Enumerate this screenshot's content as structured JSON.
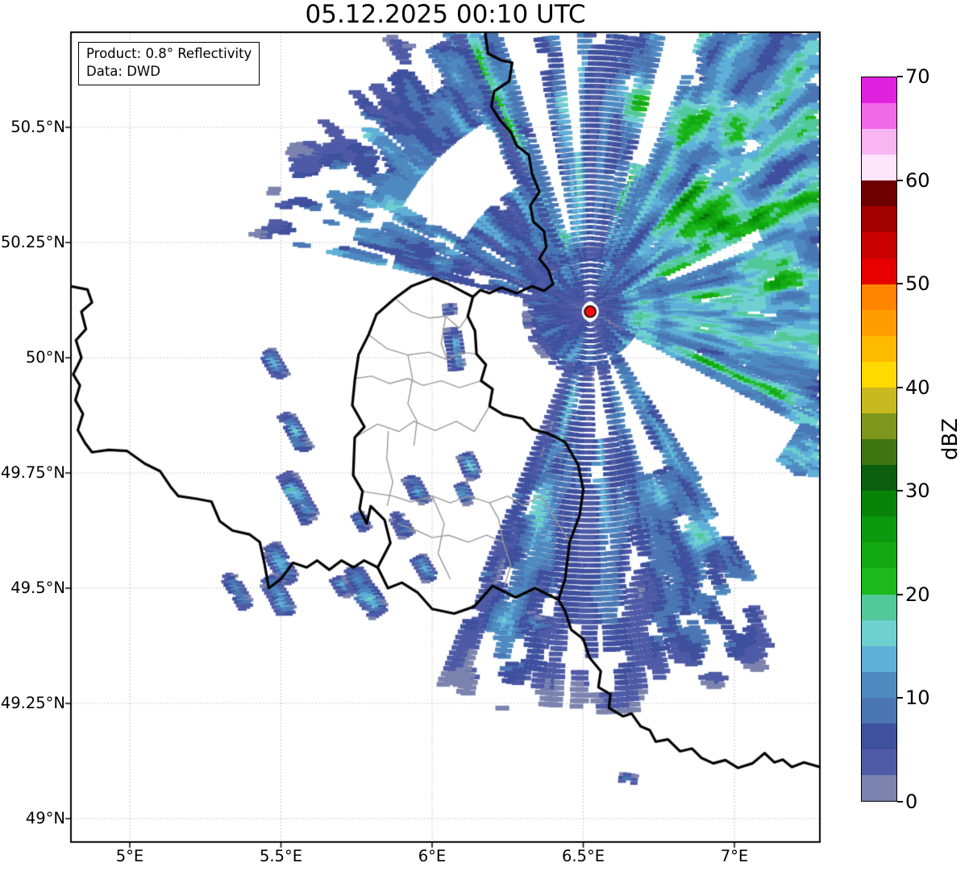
{
  "title": "05.12.2025 00:10 UTC",
  "annotation": {
    "line1": "Product: 0.8° Reflectivity",
    "line2": "Data: DWD"
  },
  "axes": {
    "x_ticks": [
      {
        "lon": 5.0,
        "label": "5°E"
      },
      {
        "lon": 5.5,
        "label": "5.5°E"
      },
      {
        "lon": 6.0,
        "label": "6°E"
      },
      {
        "lon": 6.5,
        "label": "6.5°E"
      },
      {
        "lon": 7.0,
        "label": "7°E"
      }
    ],
    "y_ticks": [
      {
        "lat": 50.5,
        "label": "50.5°N"
      },
      {
        "lat": 50.25,
        "label": "50.25°N"
      },
      {
        "lat": 50.0,
        "label": "50°N"
      },
      {
        "lat": 49.75,
        "label": "49.75°N"
      },
      {
        "lat": 49.5,
        "label": "49.5°N"
      },
      {
        "lat": 49.25,
        "label": "49.25°N"
      },
      {
        "lat": 49.0,
        "label": "49°N"
      }
    ]
  },
  "colorbar": {
    "label": "dBZ",
    "min": 0,
    "max": 70,
    "step": 2.5,
    "tick_values": [
      0,
      10,
      20,
      30,
      40,
      50,
      60,
      70
    ],
    "colors": [
      "#7b83ae",
      "#4f5ba6",
      "#3f509e",
      "#4a76b4",
      "#4e8ac0",
      "#5fb0d8",
      "#6fd0d0",
      "#52c998",
      "#1cb81c",
      "#12a912",
      "#0b9a0e",
      "#078408",
      "#0b5e0e",
      "#3f7510",
      "#7e961b",
      "#c9b920",
      "#ffd900",
      "#ffbb00",
      "#ff9d00",
      "#ff8400",
      "#e60000",
      "#c90000",
      "#a30000",
      "#700000",
      "#fde5fb",
      "#f9b5f2",
      "#f06ae8",
      "#e021e0"
    ]
  },
  "map": {
    "extent": {
      "lon_min": 4.805,
      "lon_max": 7.283,
      "lat_min": 48.949,
      "lat_max": 50.706
    },
    "grid_color": "#bbbbbb",
    "radar_site": {
      "lon": 6.523,
      "lat": 50.1,
      "marker_color": "#f10e10",
      "marker_edge": "#000000"
    },
    "borders_national": [
      [
        [
          6.175,
          50.709
        ],
        [
          6.185,
          50.66
        ],
        [
          6.23,
          50.645
        ],
        [
          6.265,
          50.64
        ],
        [
          6.255,
          50.6
        ],
        [
          6.205,
          50.578
        ],
        [
          6.196,
          50.545
        ],
        [
          6.225,
          50.515
        ],
        [
          6.26,
          50.49
        ],
        [
          6.28,
          50.46
        ],
        [
          6.32,
          50.44
        ],
        [
          6.33,
          50.4
        ],
        [
          6.355,
          50.36
        ],
        [
          6.325,
          50.33
        ],
        [
          6.335,
          50.295
        ],
        [
          6.37,
          50.275
        ],
        [
          6.378,
          50.24
        ],
        [
          6.355,
          50.215
        ],
        [
          6.385,
          50.19
        ],
        [
          6.4,
          50.16
        ],
        [
          6.37,
          50.145
        ],
        [
          6.33,
          50.155
        ],
        [
          6.28,
          50.14
        ],
        [
          6.23,
          50.152
        ],
        [
          6.19,
          50.14
        ],
        [
          6.16,
          50.147
        ],
        [
          6.135,
          50.132
        ]
      ],
      [
        [
          6.135,
          50.132
        ],
        [
          6.118,
          50.09
        ],
        [
          6.142,
          50.058
        ],
        [
          6.147,
          50.008
        ],
        [
          6.178,
          49.985
        ],
        [
          6.162,
          49.95
        ],
        [
          6.2,
          49.932
        ],
        [
          6.19,
          49.895
        ],
        [
          6.235,
          49.877
        ],
        [
          6.3,
          49.868
        ],
        [
          6.332,
          49.845
        ],
        [
          6.382,
          49.836
        ],
        [
          6.44,
          49.817
        ],
        [
          6.483,
          49.768
        ],
        [
          6.5,
          49.714
        ],
        [
          6.488,
          49.658
        ],
        [
          6.455,
          49.6
        ],
        [
          6.44,
          49.52
        ],
        [
          6.418,
          49.475
        ],
        [
          6.34,
          49.5
        ],
        [
          6.276,
          49.48
        ],
        [
          6.2,
          49.505
        ],
        [
          6.139,
          49.46
        ],
        [
          6.073,
          49.445
        ],
        [
          6.0,
          49.455
        ],
        [
          5.953,
          49.49
        ],
        [
          5.9,
          49.512
        ],
        [
          5.854,
          49.5
        ],
        [
          5.82,
          49.545
        ],
        [
          5.862,
          49.598
        ],
        [
          5.843,
          49.648
        ],
        [
          5.797,
          49.678
        ],
        [
          5.784,
          49.64
        ],
        [
          5.76,
          49.672
        ],
        [
          5.77,
          49.71
        ],
        [
          5.739,
          49.745
        ],
        [
          5.744,
          49.827
        ],
        [
          5.776,
          49.85
        ],
        [
          5.736,
          49.897
        ],
        [
          5.745,
          49.955
        ],
        [
          5.757,
          50.007
        ],
        [
          5.79,
          50.05
        ],
        [
          5.816,
          50.094
        ],
        [
          5.877,
          50.129
        ],
        [
          5.931,
          50.155
        ],
        [
          6.003,
          50.173
        ],
        [
          6.051,
          50.161
        ],
        [
          6.091,
          50.147
        ],
        [
          6.135,
          50.132
        ]
      ],
      [
        [
          4.806,
          50.155
        ],
        [
          4.86,
          50.148
        ],
        [
          4.875,
          50.12
        ],
        [
          4.84,
          50.1
        ],
        [
          4.855,
          50.062
        ],
        [
          4.822,
          50.038
        ],
        [
          4.84,
          50.0
        ],
        [
          4.813,
          49.964
        ],
        [
          4.835,
          49.94
        ],
        [
          4.82,
          49.908
        ],
        [
          4.845,
          49.878
        ],
        [
          4.828,
          49.843
        ],
        [
          4.852,
          49.815
        ],
        [
          4.875,
          49.795
        ],
        [
          4.93,
          49.8
        ],
        [
          4.99,
          49.798
        ],
        [
          5.05,
          49.77
        ],
        [
          5.1,
          49.754
        ],
        [
          5.135,
          49.72
        ],
        [
          5.16,
          49.7
        ],
        [
          5.22,
          49.694
        ],
        [
          5.27,
          49.688
        ],
        [
          5.298,
          49.645
        ],
        [
          5.34,
          49.625
        ],
        [
          5.395,
          49.617
        ],
        [
          5.43,
          49.6
        ],
        [
          5.445,
          49.555
        ],
        [
          5.46,
          49.5
        ],
        [
          5.5,
          49.52
        ],
        [
          5.54,
          49.555
        ],
        [
          5.585,
          49.545
        ],
        [
          5.62,
          49.56
        ],
        [
          5.66,
          49.54
        ],
        [
          5.7,
          49.56
        ],
        [
          5.74,
          49.545
        ],
        [
          5.775,
          49.56
        ],
        [
          5.82,
          49.545
        ]
      ],
      [
        [
          6.418,
          49.475
        ],
        [
          6.44,
          49.45
        ],
        [
          6.46,
          49.41
        ],
        [
          6.5,
          49.39
        ],
        [
          6.52,
          49.35
        ],
        [
          6.558,
          49.32
        ],
        [
          6.55,
          49.285
        ],
        [
          6.59,
          49.27
        ],
        [
          6.585,
          49.24
        ],
        [
          6.632,
          49.222
        ],
        [
          6.66,
          49.228
        ],
        [
          6.69,
          49.2
        ],
        [
          6.72,
          49.192
        ],
        [
          6.74,
          49.167
        ],
        [
          6.78,
          49.172
        ],
        [
          6.82,
          49.146
        ],
        [
          6.86,
          49.152
        ],
        [
          6.89,
          49.132
        ],
        [
          6.93,
          49.12
        ],
        [
          6.97,
          49.127
        ],
        [
          7.012,
          49.11
        ],
        [
          7.06,
          49.12
        ],
        [
          7.1,
          49.142
        ],
        [
          7.132,
          49.122
        ],
        [
          7.16,
          49.128
        ],
        [
          7.19,
          49.112
        ],
        [
          7.23,
          49.122
        ],
        [
          7.283,
          49.112
        ]
      ]
    ],
    "borders_districts": [
      [
        [
          5.877,
          50.129
        ],
        [
          5.93,
          50.1
        ],
        [
          5.99,
          50.086
        ],
        [
          6.045,
          50.09
        ],
        [
          6.09,
          50.064
        ],
        [
          6.118,
          50.09
        ]
      ],
      [
        [
          5.79,
          50.05
        ],
        [
          5.85,
          50.02
        ],
        [
          5.92,
          50.006
        ],
        [
          5.99,
          50.012
        ],
        [
          6.05,
          49.996
        ],
        [
          6.1,
          50.012
        ],
        [
          6.147,
          50.008
        ]
      ],
      [
        [
          5.745,
          49.955
        ],
        [
          5.8,
          49.96
        ],
        [
          5.86,
          49.944
        ],
        [
          5.92,
          49.955
        ],
        [
          5.97,
          49.94
        ],
        [
          6.03,
          49.95
        ],
        [
          6.09,
          49.935
        ],
        [
          6.162,
          49.95
        ]
      ],
      [
        [
          5.92,
          50.006
        ],
        [
          5.935,
          49.955
        ],
        [
          5.92,
          49.9
        ],
        [
          5.95,
          49.862
        ],
        [
          5.94,
          49.81
        ]
      ],
      [
        [
          5.744,
          49.827
        ],
        [
          5.82,
          49.856
        ],
        [
          5.89,
          49.84
        ],
        [
          5.94,
          49.862
        ]
      ],
      [
        [
          5.94,
          49.862
        ],
        [
          6.01,
          49.842
        ],
        [
          6.08,
          49.862
        ],
        [
          6.14,
          49.84
        ],
        [
          6.19,
          49.895
        ]
      ],
      [
        [
          5.855,
          49.84
        ],
        [
          5.85,
          49.78
        ],
        [
          5.87,
          49.73
        ],
        [
          5.852,
          49.68
        ]
      ],
      [
        [
          5.77,
          49.71
        ],
        [
          5.87,
          49.7
        ],
        [
          5.93,
          49.687
        ],
        [
          6.0,
          49.7
        ],
        [
          6.06,
          49.685
        ],
        [
          6.12,
          49.7
        ],
        [
          6.19,
          49.685
        ],
        [
          6.25,
          49.7
        ],
        [
          6.3,
          49.68
        ],
        [
          6.36,
          49.7
        ],
        [
          6.455,
          49.6
        ]
      ],
      [
        [
          6.0,
          49.7
        ],
        [
          6.04,
          49.64
        ],
        [
          6.02,
          49.575
        ],
        [
          6.06,
          49.52
        ]
      ],
      [
        [
          5.885,
          49.64
        ],
        [
          5.95,
          49.625
        ],
        [
          6.0,
          49.61
        ],
        [
          6.055,
          49.615
        ],
        [
          6.12,
          49.6
        ],
        [
          6.18,
          49.615
        ],
        [
          6.235,
          49.6
        ]
      ],
      [
        [
          6.235,
          49.6
        ],
        [
          6.26,
          49.55
        ],
        [
          6.24,
          49.505
        ]
      ],
      [
        [
          6.19,
          49.685
        ],
        [
          6.22,
          49.65
        ],
        [
          6.235,
          49.6
        ]
      ],
      [
        [
          6.045,
          50.09
        ],
        [
          6.03,
          50.03
        ],
        [
          6.05,
          49.996
        ]
      ]
    ]
  },
  "radar_field": {
    "seed": 7,
    "az_step": 0.75,
    "r_step": 7,
    "sectors": [
      {
        "az0": 0,
        "az1": 360,
        "r0": 16,
        "r1": 85,
        "base": 7,
        "varr": 4,
        "drop": 0.15
      },
      {
        "az0": 333,
        "az1": 390,
        "r0": 70,
        "r1": 640,
        "base": 10.5,
        "varr": 6,
        "drop": 0.22
      },
      {
        "az0": 30,
        "az1": 118,
        "r0": 70,
        "r1": 760,
        "base": 12.5,
        "varr": 6,
        "drop": 0.14
      },
      {
        "az0": 118,
        "az1": 152,
        "r0": 70,
        "r1": 460,
        "base": 8,
        "varr": 5,
        "drop": 0.3
      },
      {
        "az0": 152,
        "az1": 202,
        "r0": 70,
        "r1": 520,
        "base": 7.5,
        "varr": 4.5,
        "drop": 0.25
      },
      {
        "az0": 283,
        "az1": 335,
        "r0": 70,
        "r1": 440,
        "base": 7.5,
        "varr": 5,
        "drop": 0.27
      }
    ],
    "white_wedges": [
      [
        342,
        349,
        100,
        460
      ],
      [
        353,
        358,
        200,
        430
      ],
      [
        299,
        331,
        180,
        272
      ],
      [
        118,
        147,
        60,
        300
      ],
      [
        128,
        148,
        250,
        450
      ],
      [
        154,
        163,
        55,
        215
      ],
      [
        170,
        179,
        70,
        160
      ],
      [
        15,
        22,
        190,
        410
      ],
      [
        64,
        69,
        100,
        220
      ]
    ],
    "green_zones": [
      [
        6.704,
        50.566,
        46,
        36,
        9
      ],
      [
        6.917,
        50.514,
        70,
        42,
        8
      ],
      [
        6.917,
        50.295,
        82,
        46,
        11
      ],
      [
        7.104,
        50.191,
        56,
        36,
        8
      ],
      [
        6.691,
        50.086,
        28,
        58,
        8
      ],
      [
        6.645,
        49.937,
        22,
        66,
        7
      ],
      [
        6.445,
        50.269,
        22,
        46,
        7
      ],
      [
        6.736,
        49.706,
        28,
        25,
        6
      ],
      [
        5.869,
        50.343,
        38,
        42,
        6
      ],
      [
        6.045,
        50.229,
        20,
        30,
        5
      ],
      [
        6.877,
        49.622,
        30,
        30,
        6
      ],
      [
        6.624,
        49.657,
        18,
        46,
        5
      ]
    ],
    "cells": [
      [
        5.477,
        49.986,
        150,
        22,
        7,
        11
      ],
      [
        5.545,
        49.838,
        150,
        30,
        8,
        13
      ],
      [
        5.555,
        49.695,
        152,
        38,
        11,
        15
      ],
      [
        5.499,
        49.552,
        150,
        30,
        9,
        13
      ],
      [
        5.491,
        49.482,
        150,
        30,
        9,
        14
      ],
      [
        5.352,
        49.494,
        148,
        27,
        8,
        12
      ],
      [
        5.704,
        49.505,
        150,
        16,
        7,
        10
      ],
      [
        5.776,
        49.491,
        145,
        38,
        12,
        14
      ],
      [
        5.763,
        49.643,
        150,
        15,
        6,
        9
      ],
      [
        5.947,
        49.713,
        152,
        22,
        7,
        12
      ],
      [
        6.123,
        49.766,
        155,
        19,
        7,
        13
      ],
      [
        6.104,
        49.706,
        155,
        16,
        6,
        11
      ],
      [
        5.896,
        49.638,
        150,
        20,
        7,
        11
      ],
      [
        5.973,
        49.544,
        150,
        19,
        7,
        14
      ],
      [
        6.352,
        49.421,
        120,
        20,
        8,
        10
      ],
      [
        6.075,
        50.019,
        172,
        30,
        7,
        17
      ],
      [
        6.056,
        50.105,
        172,
        10,
        5,
        8
      ],
      [
        6.651,
        49.086,
        100,
        13,
        5,
        9
      ]
    ]
  }
}
